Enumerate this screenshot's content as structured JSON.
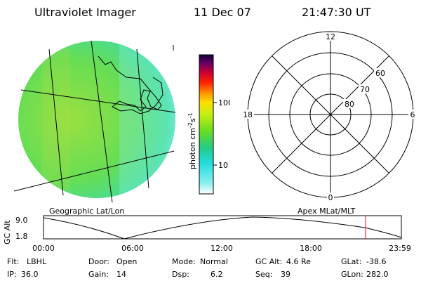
{
  "header": {
    "title": "Ultraviolet Imager",
    "date": "11 Dec 07",
    "time": "21:47:30 UT"
  },
  "colorbar": {
    "unit_label": "photon cm",
    "unit_exp1": "-2",
    "unit_mid": "s",
    "unit_exp2": "-1",
    "tick_100": "100",
    "tick_10": "10"
  },
  "polar": {
    "lat_labels": [
      "60",
      "70",
      "80"
    ],
    "mlt_labels": {
      "top": "12",
      "bottom": "0",
      "left": "18",
      "right": "6"
    }
  },
  "captions": {
    "left": "Geographic Lat/Lon",
    "right": "Apex MLat/MLT"
  },
  "altitude_plot": {
    "ylabel": "GC Alt",
    "y_ticks": [
      "9.0",
      "1.8"
    ],
    "x_ticks": [
      "00:00",
      "06:00",
      "12:00",
      "18:00",
      "23:59"
    ],
    "current_time_frac": 0.9
  },
  "info_rows": [
    [
      {
        "label": "Flt:",
        "value": "LBHL"
      },
      {
        "label": "Door:",
        "value": "Open"
      },
      {
        "label": "Mode:",
        "value": "Normal"
      },
      {
        "label": "GC Alt:",
        "value": "4.6 Re"
      },
      {
        "label": "GLat:",
        "value": "-38.6"
      }
    ],
    [
      {
        "label": "IP:",
        "value": "36.0"
      },
      {
        "label": "Gain:",
        "value": "14"
      },
      {
        "label": "Dsp:",
        "value": "6.2"
      },
      {
        "label": "Seq:",
        "value": "39"
      },
      {
        "label": "GLon:",
        "value": "282.0"
      }
    ]
  ],
  "colors": {
    "marker": "#ff0000",
    "image_base": "#66dd44"
  }
}
